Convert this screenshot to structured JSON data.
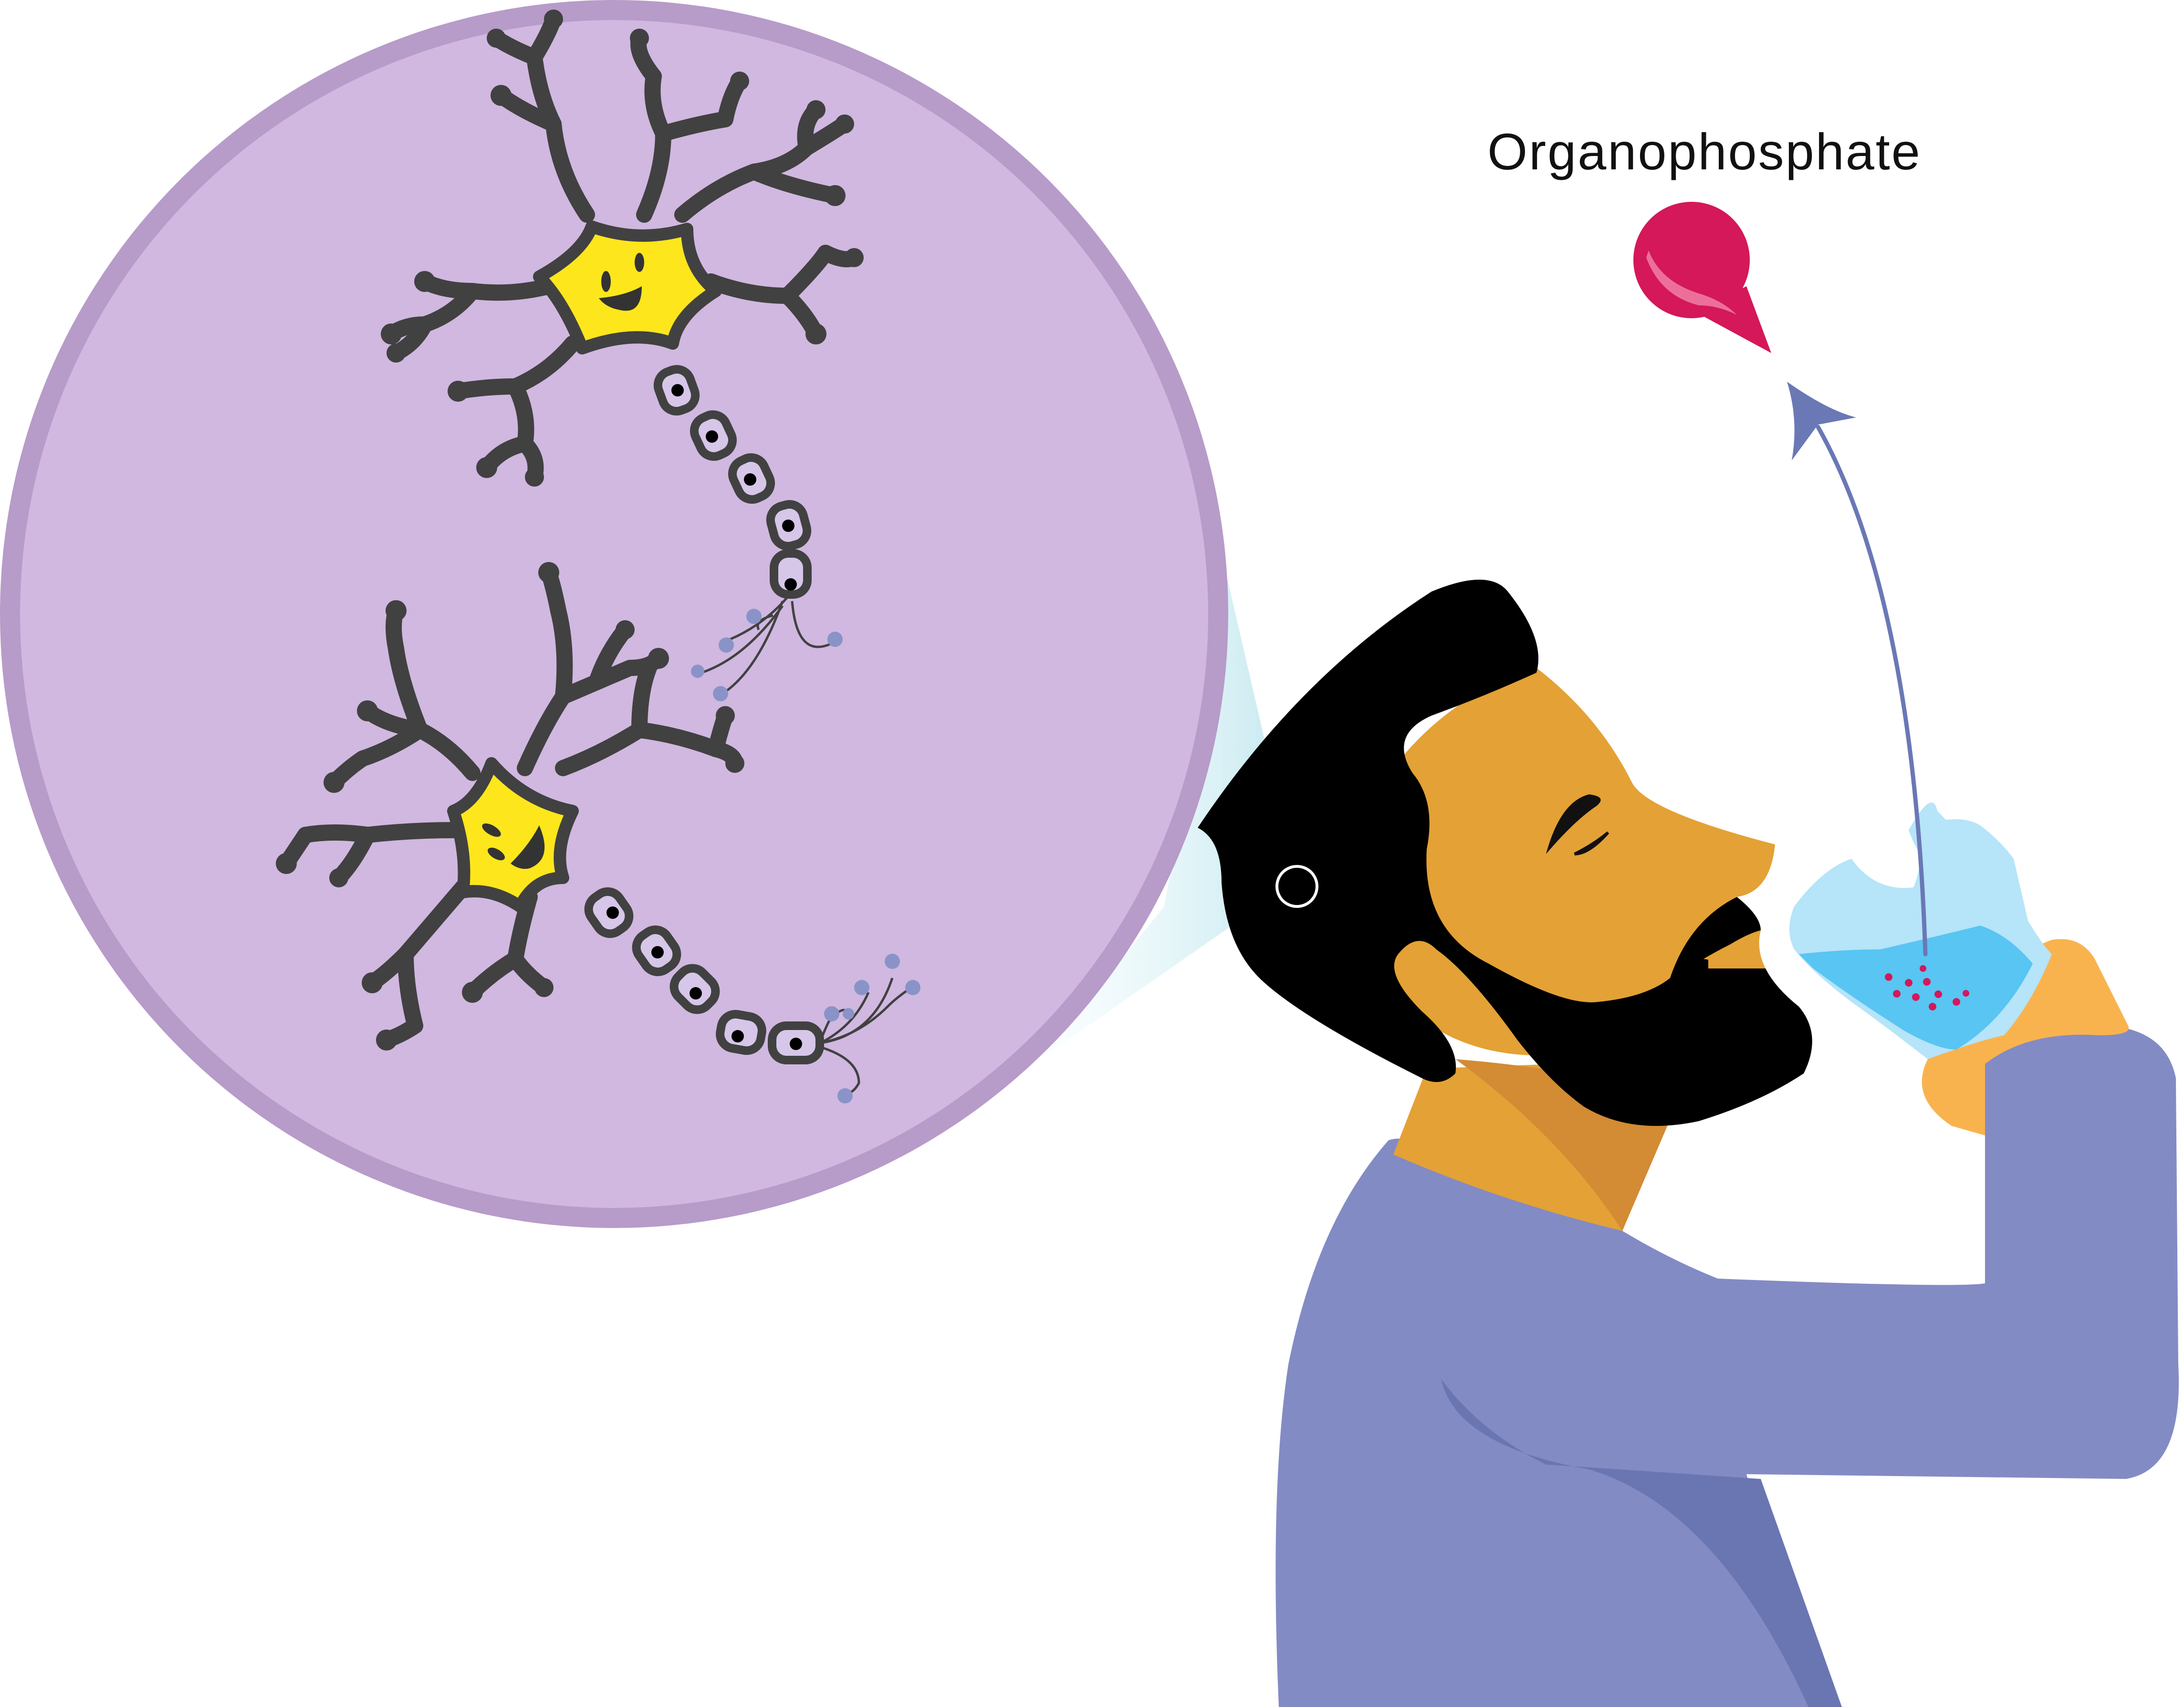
{
  "labels": {
    "toxin": "Organophosphate"
  },
  "colors": {
    "magnifier_fill": "#d0b8e0",
    "magnifier_ring": "#b79bc9",
    "neuron_body": "#fde61c",
    "neuron_outline": "#414141",
    "axon_segment": "#d6c6e8",
    "neurotransmitter_dot": "#8a93c8",
    "toxin_drop": "#d4185a",
    "toxin_highlight": "#ec6f9a",
    "drip_line": "#6a78b5",
    "shirt": "#838bc4",
    "shirt_shadow": "#6a76b2",
    "skin": "#e4a135",
    "skin_shadow": "#d38b34",
    "hand": "#f9b34e",
    "hair_beard": "#000000",
    "glass": "#b6e4f8",
    "water": "#58c5f3",
    "beam": "#cfeef4"
  },
  "icons": {
    "magnifier": "magnifier-circle",
    "neuron": "neuron-icon",
    "drop": "toxin-drop-icon",
    "glass": "drinking-glass-icon",
    "person": "person-drinking-icon"
  }
}
